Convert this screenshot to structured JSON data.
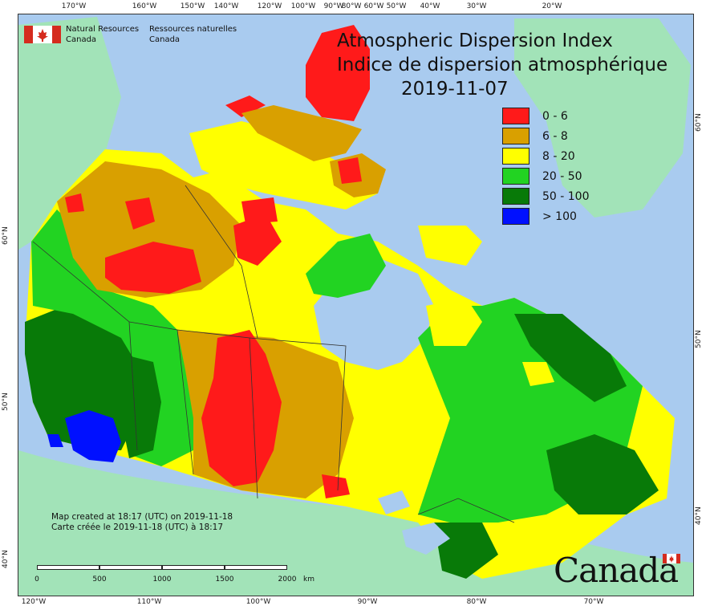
{
  "map": {
    "title_en": "Atmospheric Dispersion Index",
    "title_fr": "Indice de dispersion atmosphérique",
    "date": "2019-11-07",
    "legend": [
      {
        "label": "0 - 6",
        "color": "#ff1a1a"
      },
      {
        "label": "6 - 8",
        "color": "#d9a000"
      },
      {
        "label": "8 - 20",
        "color": "#ffff00"
      },
      {
        "label": "20 - 50",
        "color": "#22d322"
      },
      {
        "label": "50 - 100",
        "color": "#087a08"
      },
      {
        "label": "> 100",
        "color": "#0010ff"
      }
    ],
    "organization": {
      "en_line1": "Natural Resources",
      "en_line2": "Canada",
      "fr_line1": "Ressources naturelles",
      "fr_line2": "Canada"
    },
    "created_en": "Map created at 18:17 (UTC) on 2019-11-18",
    "created_fr": "Carte créée le 2019-11-18 (UTC) à 18:17",
    "wordmark": "Canada",
    "scale": {
      "labels": [
        "0",
        "500",
        "1000",
        "1500",
        "2000"
      ],
      "unit": "km"
    },
    "top_ticks": [
      "170°W",
      "160°W",
      "150°W",
      "140°W",
      "120°W",
      "100°W",
      "90°W",
      "80°W",
      "60°W",
      "50°W",
      "40°W",
      "30°W",
      "20°W"
    ],
    "bottom_ticks": [
      "120°W",
      "110°W",
      "100°W",
      "90°W",
      "80°W",
      "70°W"
    ],
    "left_ticks": [
      "60°N",
      "50°N",
      "40°N"
    ],
    "right_ticks": [
      "60°N",
      "50°N",
      "40°N"
    ],
    "colors": {
      "ocean": "#a9cbef",
      "land_other": "#a2e3b8",
      "water": "#a9cbef",
      "border": "#333333"
    }
  }
}
